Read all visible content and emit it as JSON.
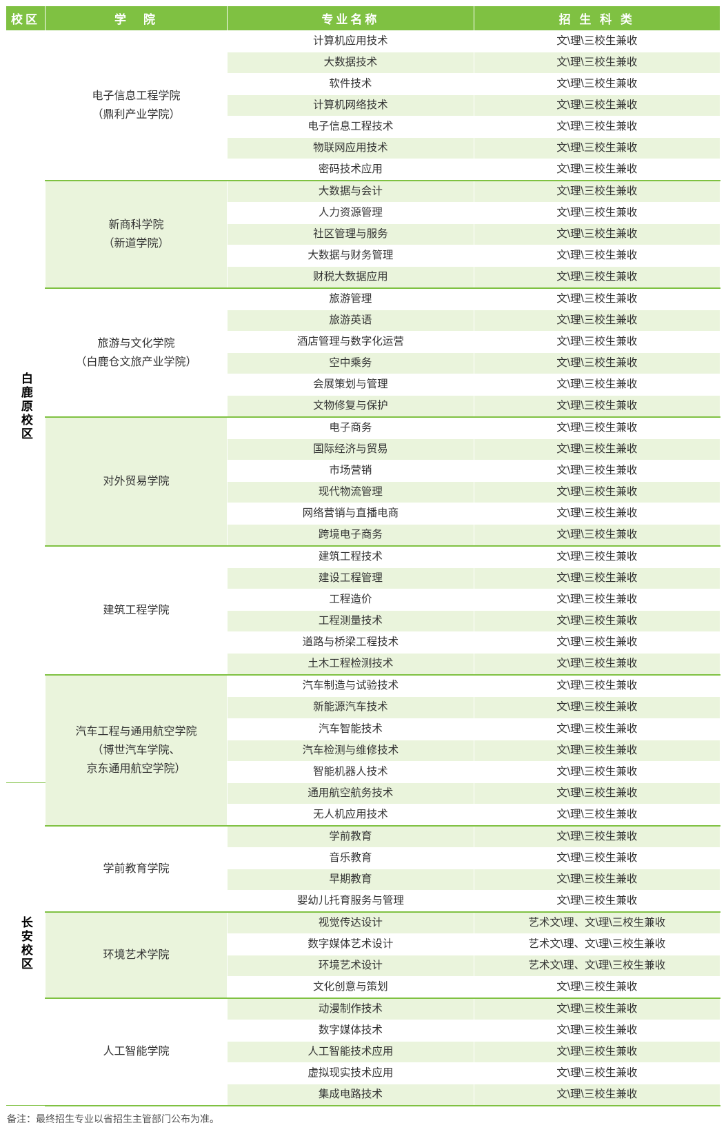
{
  "header": {
    "campus": "校区",
    "college": "学　院",
    "major": "专业名称",
    "category": "招 生 科 类"
  },
  "std_cat": "文\\理\\三校生兼收",
  "art_cat": "艺术文\\理、文\\理\\三校生兼收",
  "campuses": [
    {
      "name": "白鹿原校区"
    },
    {
      "name": "长安校区"
    }
  ],
  "colleges": [
    {
      "name_lines": [
        "电子信息工程学院",
        "（鼎利产业学院）"
      ],
      "bg": "white",
      "majors": [
        {
          "name": "计算机应用技术",
          "cat": "std",
          "bg": "white"
        },
        {
          "name": "大数据技术",
          "cat": "std",
          "bg": "light"
        },
        {
          "name": "软件技术",
          "cat": "std",
          "bg": "white"
        },
        {
          "name": "计算机网络技术",
          "cat": "std",
          "bg": "light"
        },
        {
          "name": "电子信息工程技术",
          "cat": "std",
          "bg": "white"
        },
        {
          "name": "物联网应用技术",
          "cat": "std",
          "bg": "light"
        },
        {
          "name": "密码技术应用",
          "cat": "std",
          "bg": "white"
        }
      ]
    },
    {
      "name_lines": [
        "新商科学院",
        "（新道学院）"
      ],
      "bg": "light",
      "majors": [
        {
          "name": "大数据与会计",
          "cat": "std",
          "bg": "light"
        },
        {
          "name": "人力资源管理",
          "cat": "std",
          "bg": "white"
        },
        {
          "name": "社区管理与服务",
          "cat": "std",
          "bg": "light"
        },
        {
          "name": "大数据与财务管理",
          "cat": "std",
          "bg": "white"
        },
        {
          "name": "财税大数据应用",
          "cat": "std",
          "bg": "light"
        }
      ]
    },
    {
      "name_lines": [
        "旅游与文化学院",
        "（白鹿仓文旅产业学院）"
      ],
      "bg": "white",
      "majors": [
        {
          "name": "旅游管理",
          "cat": "std",
          "bg": "white"
        },
        {
          "name": "旅游英语",
          "cat": "std",
          "bg": "light"
        },
        {
          "name": "酒店管理与数字化运营",
          "cat": "std",
          "bg": "white"
        },
        {
          "name": "空中乘务",
          "cat": "std",
          "bg": "light"
        },
        {
          "name": "会展策划与管理",
          "cat": "std",
          "bg": "white"
        },
        {
          "name": "文物修复与保护",
          "cat": "std",
          "bg": "light"
        }
      ]
    },
    {
      "name_lines": [
        "对外贸易学院"
      ],
      "bg": "light",
      "majors": [
        {
          "name": "电子商务",
          "cat": "std",
          "bg": "white"
        },
        {
          "name": "国际经济与贸易",
          "cat": "std",
          "bg": "light"
        },
        {
          "name": "市场营销",
          "cat": "std",
          "bg": "white"
        },
        {
          "name": "现代物流管理",
          "cat": "std",
          "bg": "light"
        },
        {
          "name": "网络营销与直播电商",
          "cat": "std",
          "bg": "white"
        },
        {
          "name": "跨境电子商务",
          "cat": "std",
          "bg": "light"
        }
      ]
    },
    {
      "name_lines": [
        "建筑工程学院"
      ],
      "bg": "white",
      "majors": [
        {
          "name": "建筑工程技术",
          "cat": "std",
          "bg": "white"
        },
        {
          "name": "建设工程管理",
          "cat": "std",
          "bg": "light"
        },
        {
          "name": "工程造价",
          "cat": "std",
          "bg": "white"
        },
        {
          "name": "工程测量技术",
          "cat": "std",
          "bg": "light"
        },
        {
          "name": "道路与桥梁工程技术",
          "cat": "std",
          "bg": "white"
        },
        {
          "name": "土木工程检测技术",
          "cat": "std",
          "bg": "light"
        }
      ]
    },
    {
      "name_lines": [
        "汽车工程与通用航空学院",
        "（博世汽车学院、",
        "京东通用航空学院）"
      ],
      "bg": "light",
      "majors": [
        {
          "name": "汽车制造与试验技术",
          "cat": "std",
          "bg": "white"
        },
        {
          "name": "新能源汽车技术",
          "cat": "std",
          "bg": "light"
        },
        {
          "name": "汽车智能技术",
          "cat": "std",
          "bg": "white"
        },
        {
          "name": "汽车检测与维修技术",
          "cat": "std",
          "bg": "light"
        },
        {
          "name": "智能机器人技术",
          "cat": "std",
          "bg": "white"
        },
        {
          "name": "通用航空航务技术",
          "cat": "std",
          "bg": "light"
        },
        {
          "name": "无人机应用技术",
          "cat": "std",
          "bg": "white"
        }
      ]
    },
    {
      "name_lines": [
        "学前教育学院"
      ],
      "bg": "white",
      "majors": [
        {
          "name": "学前教育",
          "cat": "std",
          "bg": "light"
        },
        {
          "name": "音乐教育",
          "cat": "std",
          "bg": "white"
        },
        {
          "name": "早期教育",
          "cat": "std",
          "bg": "light"
        },
        {
          "name": "婴幼儿托育服务与管理",
          "cat": "std",
          "bg": "white"
        }
      ]
    },
    {
      "name_lines": [
        "环境艺术学院"
      ],
      "bg": "light",
      "majors": [
        {
          "name": "视觉传达设计",
          "cat": "art",
          "bg": "light"
        },
        {
          "name": "数字媒体艺术设计",
          "cat": "art",
          "bg": "white"
        },
        {
          "name": "环境艺术设计",
          "cat": "art",
          "bg": "light"
        },
        {
          "name": "文化创意与策划",
          "cat": "std",
          "bg": "white"
        }
      ]
    },
    {
      "name_lines": [
        "人工智能学院"
      ],
      "bg": "white",
      "majors": [
        {
          "name": "动漫制作技术",
          "cat": "std",
          "bg": "light"
        },
        {
          "name": "数字媒体技术",
          "cat": "std",
          "bg": "white"
        },
        {
          "name": "人工智能技术应用",
          "cat": "std",
          "bg": "light"
        },
        {
          "name": "虚拟现实技术应用",
          "cat": "std",
          "bg": "white"
        },
        {
          "name": "集成电路技术",
          "cat": "std",
          "bg": "light"
        }
      ]
    }
  ],
  "campus_split": {
    "first_campus_colleges": 6,
    "first_campus_extra_rows_in_last_college": 5
  },
  "footnote": "备注：最终招生专业以省招生主管部门公布为准。",
  "colors": {
    "header_bg": "#7fc142",
    "header_text": "#ffffff",
    "light_row": "#eaf4dc",
    "white_row": "#ffffff",
    "text": "#333333",
    "divider": "#7fc142"
  }
}
